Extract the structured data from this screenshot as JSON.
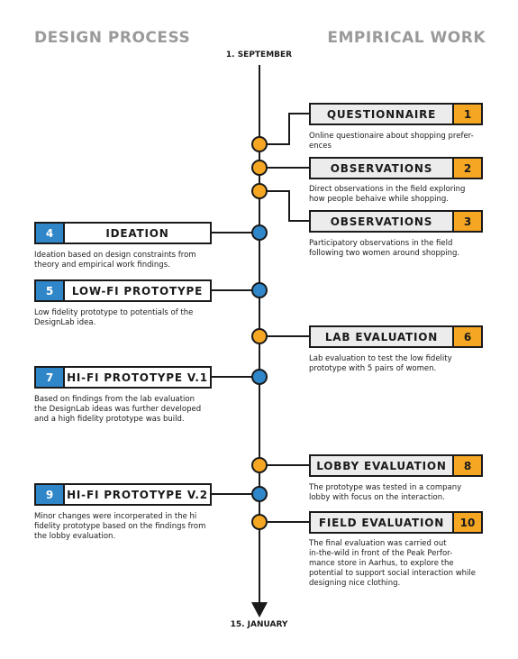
{
  "header": {
    "left_title": "DESIGN PROCESS",
    "right_title": "EMPIRICAL WORK"
  },
  "timeline": {
    "start_label": "1. SEPTEMBER",
    "end_label": "15. JANUARY"
  },
  "steps": [
    {
      "number": "1",
      "label": "QUESTIONNAIRE",
      "side": "right",
      "color": "#f5a623",
      "description": [
        "Online questionaire about shopping prefer-",
        "ences"
      ]
    },
    {
      "number": "2",
      "label": "OBSERVATIONS",
      "side": "right",
      "color": "#f5a623",
      "description": [
        "Direct observations in the field exploring",
        "how people behaive while shopping."
      ]
    },
    {
      "number": "3",
      "label": "OBSERVATIONS",
      "side": "right",
      "color": "#f5a623",
      "description": [
        "Participatory observations in the field",
        "following two women around shopping."
      ]
    },
    {
      "number": "4",
      "label": "IDEATION",
      "side": "left",
      "color": "#2f86c8",
      "description": [
        "Ideation based on design constraints from",
        "theory and empirical work findings."
      ]
    },
    {
      "number": "5",
      "label": "LOW-FI PROTOTYPE",
      "side": "left",
      "color": "#2f86c8",
      "description": [
        "Low fidelity prototype to potentials of the",
        "DesignLab idea."
      ]
    },
    {
      "number": "6",
      "label": "LAB EVALUATION",
      "side": "right",
      "color": "#f5a623",
      "description": [
        "Lab evaluation to test the low fidelity",
        "prototype with 5 pairs of women."
      ]
    },
    {
      "number": "7",
      "label": "HI-FI PROTOTYPE V.1",
      "side": "left",
      "color": "#2f86c8",
      "description": [
        "Based on findings from the lab evaluation",
        "the DesignLab ideas was further developed",
        "and a high fidelity prototype was build."
      ]
    },
    {
      "number": "8",
      "label": "LOBBY EVALUATION",
      "side": "right",
      "color": "#f5a623",
      "description": [
        "The prototype was tested in a company",
        "lobby with focus on the interaction."
      ]
    },
    {
      "number": "9",
      "label": "HI-FI PROTOTYPE V.2",
      "side": "left",
      "color": "#2f86c8",
      "description": [
        "Minor changes were incorperated in the hi",
        "fidelity prototype based on the findings from",
        "the lobby evaluation."
      ]
    },
    {
      "number": "10",
      "label": "FIELD EVALUATION",
      "side": "right",
      "color": "#f5a623",
      "description": [
        "The final evaluation was carried out",
        "in-the-wild in front of the Peak Perfor-",
        "mance store in Aarhus, to explore the",
        "potential to support social interaction while",
        "designing nice clothing."
      ]
    }
  ]
}
